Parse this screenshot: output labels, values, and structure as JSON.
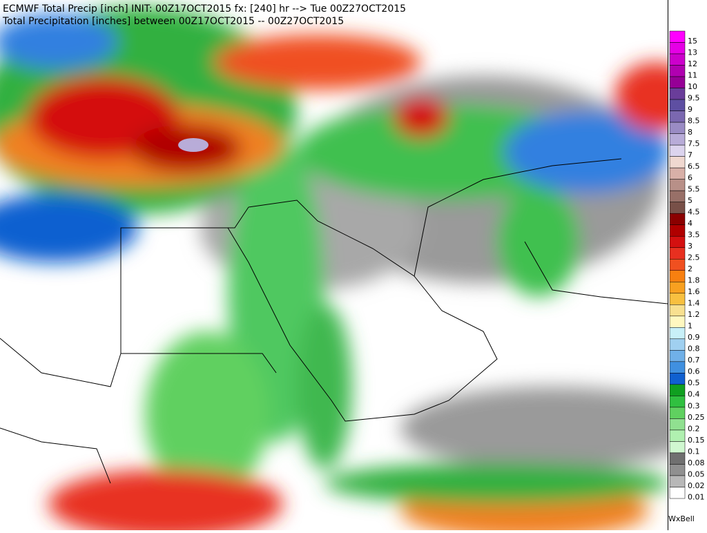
{
  "header": {
    "line1": "ECMWF Total Precip [inch] INIT: 00Z17OCT2015 fx: [240] hr --> Tue 00Z27OCT2015",
    "line2": "Total Precipitation [inches] between 00Z17OCT2015 -- 00Z27OCT2015"
  },
  "legend": {
    "entries": [
      {
        "label": "15",
        "color": "#ff00ff"
      },
      {
        "label": "13",
        "color": "#e600e6"
      },
      {
        "label": "12",
        "color": "#cc00cc"
      },
      {
        "label": "11",
        "color": "#b000b0"
      },
      {
        "label": "10",
        "color": "#960096"
      },
      {
        "label": "9.5",
        "color": "#6a3d9a"
      },
      {
        "label": "9",
        "color": "#5e4fa2"
      },
      {
        "label": "8.5",
        "color": "#7b68b0"
      },
      {
        "label": "8",
        "color": "#9a8cc4"
      },
      {
        "label": "7.5",
        "color": "#b8acd8"
      },
      {
        "label": "7",
        "color": "#dcd4ee"
      },
      {
        "label": "6.5",
        "color": "#f0d8d0"
      },
      {
        "label": "6",
        "color": "#d8b0a8"
      },
      {
        "label": "5.5",
        "color": "#b89088"
      },
      {
        "label": "5",
        "color": "#987068"
      },
      {
        "label": "4.5",
        "color": "#785048"
      },
      {
        "label": "4",
        "color": "#8b0000"
      },
      {
        "label": "3.5",
        "color": "#b00000"
      },
      {
        "label": "3",
        "color": "#d41010"
      },
      {
        "label": "2.5",
        "color": "#e83020"
      },
      {
        "label": "2",
        "color": "#f05020"
      },
      {
        "label": "1.8",
        "color": "#f88010"
      },
      {
        "label": "1.6",
        "color": "#f8a020"
      },
      {
        "label": "1.4",
        "color": "#f8c040"
      },
      {
        "label": "1.2",
        "color": "#f8e090"
      },
      {
        "label": "1",
        "color": "#fff8c0"
      },
      {
        "label": "0.9",
        "color": "#c8f0f8"
      },
      {
        "label": "0.8",
        "color": "#a0d0f0"
      },
      {
        "label": "0.7",
        "color": "#70b0e8"
      },
      {
        "label": "0.6",
        "color": "#4090e0"
      },
      {
        "label": "0.5",
        "color": "#1060d0"
      },
      {
        "label": "0.4",
        "color": "#10a020"
      },
      {
        "label": "0.3",
        "color": "#30c040"
      },
      {
        "label": "0.25",
        "color": "#60d060"
      },
      {
        "label": "0.2",
        "color": "#90e090"
      },
      {
        "label": "0.15",
        "color": "#b0f0b0"
      },
      {
        "label": "0.1",
        "color": "#d0f8d0"
      },
      {
        "label": "0.08",
        "color": "#707070"
      },
      {
        "label": "0.05",
        "color": "#909090"
      },
      {
        "label": "0.02",
        "color": "#b8b8b8"
      },
      {
        "label": "0.01",
        "color": "#ffffff"
      }
    ],
    "credit": "WxBell"
  }
}
